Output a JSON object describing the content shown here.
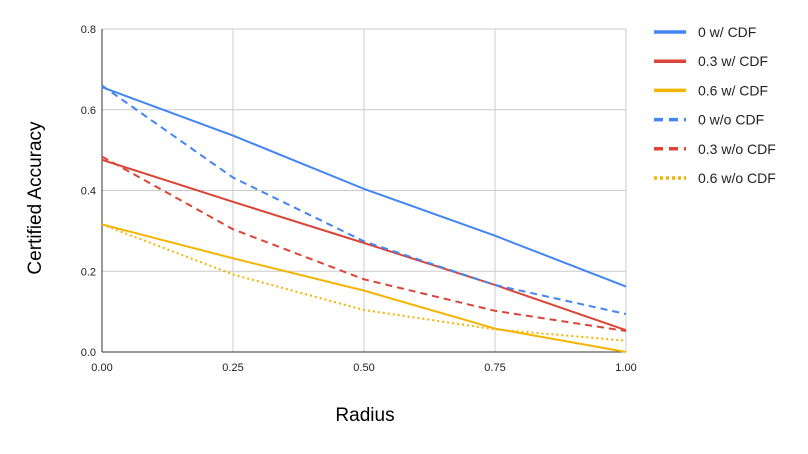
{
  "chart_data": {
    "type": "line",
    "title": "",
    "xlabel": "Radius",
    "ylabel": "Certified Accuracy",
    "x": [
      0.0,
      0.25,
      0.5,
      0.75,
      1.0
    ],
    "xlim": [
      0,
      1
    ],
    "ylim": [
      0,
      0.8
    ],
    "x_ticks": [
      "0.00",
      "0.25",
      "0.50",
      "0.75",
      "1.00"
    ],
    "y_ticks": [
      "0.0",
      "0.2",
      "0.4",
      "0.6",
      "0.8"
    ],
    "grid": true,
    "legend_position": "right",
    "series": [
      {
        "name": "0 w/ CDF",
        "values": [
          0.656,
          0.536,
          0.404,
          0.288,
          0.162
        ],
        "color": "#4285f4",
        "style": "solid"
      },
      {
        "name": "0.3 w/ CDF",
        "values": [
          0.476,
          0.372,
          0.27,
          0.166,
          0.054
        ],
        "color": "#db4437",
        "style": "solid"
      },
      {
        "name": "0.6 w/ CDF",
        "values": [
          0.316,
          0.232,
          0.152,
          0.058,
          0.0
        ],
        "color": "#f4b400",
        "style": "solid"
      },
      {
        "name": "0 w/o CDF",
        "values": [
          0.66,
          0.432,
          0.274,
          0.166,
          0.094
        ],
        "color": "#4285f4",
        "style": "dashed"
      },
      {
        "name": "0.3 w/o CDF",
        "values": [
          0.484,
          0.304,
          0.18,
          0.102,
          0.052
        ],
        "color": "#db4437",
        "style": "dashed"
      },
      {
        "name": "0.6 w/o CDF",
        "values": [
          0.316,
          0.192,
          0.104,
          0.056,
          0.028
        ],
        "color": "#f4b400",
        "style": "dotted"
      }
    ]
  }
}
